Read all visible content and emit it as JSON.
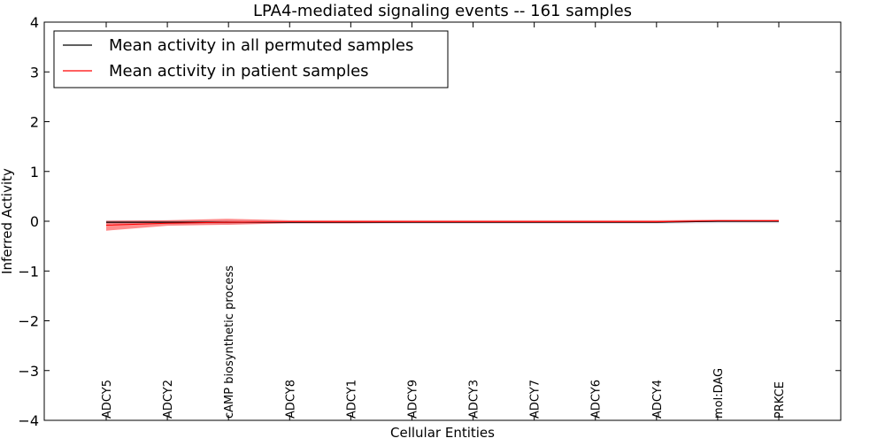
{
  "chart_data": {
    "type": "line",
    "title": "LPA4-mediated signaling events -- 161 samples",
    "xlabel": "Cellular Entities",
    "ylabel": "Inferred Activity",
    "ylim": [
      -4,
      4
    ],
    "yticks": [
      4,
      3,
      2,
      1,
      0,
      -1,
      -2,
      -3,
      -4
    ],
    "ytick_labels": [
      "4",
      "3",
      "2",
      "1",
      "0",
      "−1",
      "−2",
      "−3",
      "−4"
    ],
    "categories": [
      "ADCY5",
      "ADCY2",
      "cAMP biosynthetic process",
      "ADCY8",
      "ADCY1",
      "ADCY9",
      "ADCY3",
      "ADCY7",
      "ADCY6",
      "ADCY4",
      "mol:DAG",
      "PRKCE"
    ],
    "legend_position": "top-left",
    "series": [
      {
        "name": "Mean activity in all permuted samples",
        "color": "#000000",
        "band_color": "#9999bb",
        "values": [
          -0.02,
          -0.02,
          -0.02,
          -0.02,
          -0.02,
          -0.02,
          -0.02,
          -0.02,
          -0.02,
          -0.02,
          0.0,
          0.0
        ],
        "band_low": [
          -0.06,
          -0.06,
          -0.06,
          -0.05,
          -0.05,
          -0.05,
          -0.05,
          -0.05,
          -0.05,
          -0.05,
          -0.04,
          -0.04
        ],
        "band_high": [
          0.02,
          0.02,
          0.02,
          0.01,
          0.01,
          0.01,
          0.01,
          0.01,
          0.01,
          0.01,
          0.03,
          0.03
        ]
      },
      {
        "name": "Mean activity in patient samples",
        "color": "#ff0000",
        "band_color": "#ff0000",
        "values": [
          -0.08,
          -0.04,
          -0.02,
          -0.01,
          -0.01,
          -0.01,
          -0.01,
          -0.01,
          -0.01,
          -0.01,
          0.01,
          0.01
        ],
        "band_low": [
          -0.19,
          -0.09,
          -0.07,
          -0.04,
          -0.04,
          -0.03,
          -0.03,
          -0.03,
          -0.03,
          -0.03,
          -0.01,
          -0.01
        ],
        "band_high": [
          0.01,
          0.02,
          0.05,
          0.02,
          0.02,
          0.02,
          0.02,
          0.02,
          0.02,
          0.02,
          0.03,
          0.03
        ]
      }
    ]
  }
}
